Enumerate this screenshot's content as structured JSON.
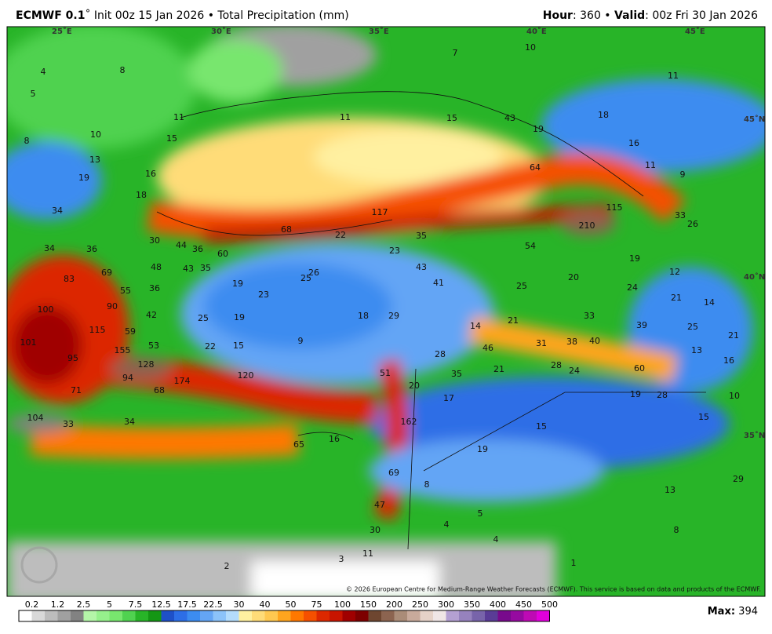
{
  "header": {
    "model": "ECMWF 0.1",
    "init": "˚ Init 00z 15 Jan 2026 • Total Precipitation (mm)",
    "hour_label": "Hour",
    "hour": ": 360 • ",
    "valid_label": "Valid",
    "valid": ": 00z Fri 30 Jan 2026"
  },
  "map": {
    "grid_labels": [
      "25˚E",
      "30˚E",
      "35˚E",
      "40˚E",
      "45˚E",
      "45˚N",
      "40˚N",
      "35˚N"
    ],
    "labels": [
      10,
      11,
      8,
      7,
      4,
      5,
      11,
      11,
      15,
      43,
      19,
      18,
      16,
      11,
      9,
      8,
      10,
      15,
      13,
      16,
      19,
      18,
      34,
      117,
      64,
      115,
      33,
      26,
      210,
      68,
      22,
      35,
      30,
      44,
      36,
      60,
      34,
      36,
      23,
      54,
      19,
      12,
      48,
      43,
      35,
      69,
      83,
      43,
      41,
      26,
      25,
      19,
      20,
      25,
      24,
      21,
      14,
      55,
      36,
      23,
      100,
      90,
      42,
      25,
      19,
      18,
      29,
      14,
      21,
      33,
      39,
      25,
      21,
      115,
      59,
      101,
      53,
      22,
      15,
      9,
      46,
      31,
      38,
      40,
      13,
      16,
      155,
      95,
      128,
      28,
      21,
      28,
      24,
      60,
      51,
      35,
      94,
      174,
      120,
      71,
      68,
      20,
      19,
      28,
      10,
      17,
      104,
      33,
      34,
      162,
      15,
      15,
      65,
      16,
      19,
      69,
      29,
      8,
      13,
      47,
      5,
      4,
      8,
      30,
      4,
      11,
      3,
      1,
      2
    ],
    "copyright": "© 2026 European Centre for Medium-Range Weather Forecasts (ECMWF). This service is based on data and products of the ECMWF."
  },
  "legend": {
    "labels": [
      0.2,
      1.2,
      2.5,
      5,
      7.5,
      12.5,
      17.5,
      22.5,
      30,
      40,
      50,
      75,
      100,
      150,
      200,
      250,
      300,
      350,
      400,
      450,
      500
    ],
    "colors": [
      "#ffffff",
      "#d9d9d9",
      "#bdbdbd",
      "#a0a0a0",
      "#828282",
      "#b4f5a8",
      "#96f08c",
      "#78e66e",
      "#50d250",
      "#28b428",
      "#149614",
      "#1e50c8",
      "#2d6ee6",
      "#3c8cf0",
      "#64a5f5",
      "#8cc3fa",
      "#b4dcfc",
      "#fff0a0",
      "#ffdc78",
      "#ffc850",
      "#ffa51e",
      "#ff7800",
      "#f55000",
      "#dc2800",
      "#c81400",
      "#a00000",
      "#7d0000",
      "#6e4630",
      "#8c6450",
      "#aa8c78",
      "#c8aa9b",
      "#e6d2c8",
      "#f0e6e6",
      "#b4a0d2",
      "#9682be",
      "#7864aa",
      "#5a3c96",
      "#780a8c",
      "#960aa0",
      "#be0ab4",
      "#e100dc"
    ],
    "max_label": "Max:",
    "max": 394
  }
}
